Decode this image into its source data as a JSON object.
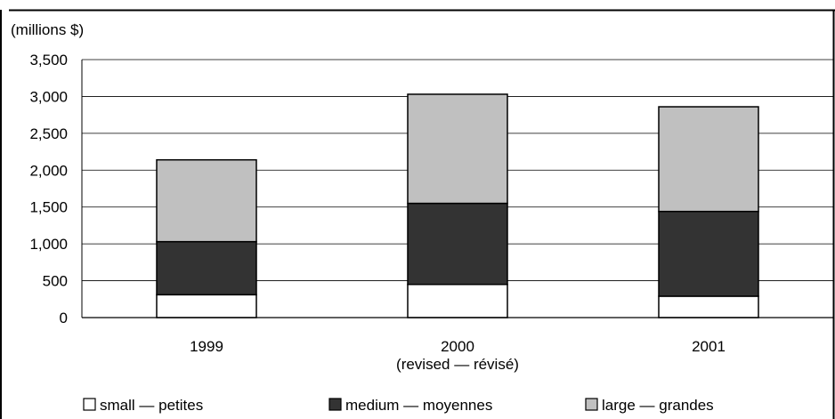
{
  "chart_data": {
    "type": "bar",
    "stacked": true,
    "y_unit_label": "(millions $)",
    "categories": [
      "1999",
      "2000",
      "2001"
    ],
    "category_sublabels": [
      "",
      "(revised — révisé)",
      ""
    ],
    "yticks": [
      "0",
      "500",
      "1,000",
      "1,500",
      "2,000",
      "2,500",
      "3,000",
      "3,500"
    ],
    "ylim": [
      0,
      3500
    ],
    "grid": true,
    "legend_position": "bottom",
    "series": [
      {
        "name": "small — petites",
        "color": "#ffffff",
        "values": [
          310,
          450,
          290
        ]
      },
      {
        "name": "medium — moyennes",
        "color": "#333333",
        "values": [
          720,
          1100,
          1150
        ]
      },
      {
        "name": "large — grandes",
        "color": "#c0c0c0",
        "values": [
          1110,
          1480,
          1420
        ]
      }
    ]
  }
}
